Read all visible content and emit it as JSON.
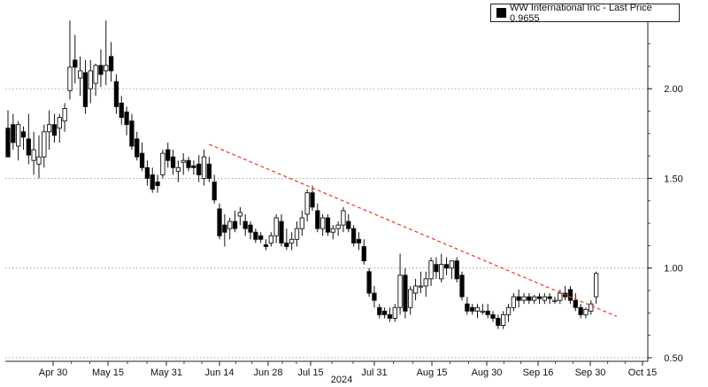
{
  "legend": {
    "label": "WW International Inc - Last Price 0.9655",
    "swatch_color": "#000000"
  },
  "chart_data": {
    "type": "candlestick",
    "title": "",
    "xlabel": "2024",
    "ylabel": "",
    "ylim": [
      0.48,
      2.48
    ],
    "yticks": [
      0.5,
      1.0,
      1.5,
      2.0
    ],
    "ytick_labels": [
      "0.50",
      "1.00",
      "1.50",
      "2.00"
    ],
    "xtick_labels": [
      "Apr 30",
      "May 15",
      "May 31",
      "Jun 14",
      "Jun 28",
      "Jul 15",
      "Jul 31",
      "Aug 15",
      "Aug 30",
      "Sep 16",
      "Sep 30",
      "Oct 15"
    ],
    "grid": true,
    "legend_position": "top-right",
    "up_color": "#ffffff",
    "down_color": "#000000",
    "series": [
      {
        "name": "WW International Inc - Last Price 0.9655",
        "ohlc": [
          [
            1.78,
            1.88,
            1.62,
            1.62
          ],
          [
            1.8,
            1.86,
            1.66,
            1.7
          ],
          [
            1.68,
            1.82,
            1.6,
            1.8
          ],
          [
            1.76,
            1.79,
            1.66,
            1.73
          ],
          [
            1.72,
            1.86,
            1.58,
            1.63
          ],
          [
            1.6,
            1.76,
            1.52,
            1.66
          ],
          [
            1.58,
            1.74,
            1.5,
            1.62
          ],
          [
            1.62,
            1.8,
            1.56,
            1.76
          ],
          [
            1.76,
            1.88,
            1.66,
            1.8
          ],
          [
            1.8,
            1.86,
            1.7,
            1.74
          ],
          [
            1.78,
            1.86,
            1.7,
            1.84
          ],
          [
            1.82,
            1.92,
            1.76,
            1.89
          ],
          [
            1.99,
            2.38,
            1.94,
            2.12
          ],
          [
            2.16,
            2.3,
            2.03,
            2.12
          ],
          [
            2.06,
            2.18,
            1.96,
            2.1
          ],
          [
            2.09,
            2.16,
            1.86,
            1.9
          ],
          [
            2.0,
            2.16,
            1.92,
            2.1
          ],
          [
            2.03,
            2.14,
            1.96,
            2.13
          ],
          [
            2.13,
            2.22,
            2.01,
            2.08
          ],
          [
            2.1,
            2.38,
            2.02,
            2.13
          ],
          [
            2.18,
            2.26,
            2.04,
            2.1
          ],
          [
            2.04,
            2.08,
            1.86,
            1.9
          ],
          [
            1.92,
            1.96,
            1.8,
            1.84
          ],
          [
            1.87,
            1.9,
            1.74,
            1.8
          ],
          [
            1.82,
            1.86,
            1.66,
            1.68
          ],
          [
            1.72,
            1.76,
            1.6,
            1.62
          ],
          [
            1.64,
            1.7,
            1.54,
            1.56
          ],
          [
            1.56,
            1.6,
            1.46,
            1.5
          ],
          [
            1.52,
            1.56,
            1.42,
            1.44
          ],
          [
            1.48,
            1.52,
            1.42,
            1.46
          ],
          [
            1.52,
            1.66,
            1.5,
            1.64
          ],
          [
            1.66,
            1.7,
            1.56,
            1.6
          ],
          [
            1.62,
            1.66,
            1.52,
            1.56
          ],
          [
            1.54,
            1.6,
            1.48,
            1.56
          ],
          [
            1.59,
            1.64,
            1.52,
            1.6
          ],
          [
            1.6,
            1.62,
            1.54,
            1.56
          ],
          [
            1.57,
            1.6,
            1.52,
            1.56
          ],
          [
            1.58,
            1.63,
            1.48,
            1.52
          ],
          [
            1.5,
            1.66,
            1.46,
            1.62
          ],
          [
            1.58,
            1.62,
            1.48,
            1.5
          ],
          [
            1.48,
            1.52,
            1.36,
            1.38
          ],
          [
            1.33,
            1.36,
            1.16,
            1.18
          ],
          [
            1.24,
            1.3,
            1.12,
            1.2
          ],
          [
            1.22,
            1.28,
            1.16,
            1.26
          ],
          [
            1.26,
            1.32,
            1.2,
            1.22
          ],
          [
            1.29,
            1.34,
            1.24,
            1.31
          ],
          [
            1.26,
            1.3,
            1.18,
            1.22
          ],
          [
            1.24,
            1.26,
            1.16,
            1.2
          ],
          [
            1.2,
            1.22,
            1.14,
            1.16
          ],
          [
            1.18,
            1.2,
            1.14,
            1.16
          ],
          [
            1.13,
            1.16,
            1.1,
            1.12
          ],
          [
            1.14,
            1.2,
            1.12,
            1.18
          ],
          [
            1.18,
            1.3,
            1.14,
            1.28
          ],
          [
            1.26,
            1.3,
            1.12,
            1.14
          ],
          [
            1.14,
            1.22,
            1.1,
            1.12
          ],
          [
            1.14,
            1.2,
            1.1,
            1.16
          ],
          [
            1.16,
            1.26,
            1.12,
            1.22
          ],
          [
            1.22,
            1.32,
            1.18,
            1.28
          ],
          [
            1.3,
            1.44,
            1.26,
            1.42
          ],
          [
            1.42,
            1.46,
            1.32,
            1.34
          ],
          [
            1.32,
            1.36,
            1.2,
            1.22
          ],
          [
            1.22,
            1.3,
            1.18,
            1.28
          ],
          [
            1.28,
            1.3,
            1.18,
            1.2
          ],
          [
            1.2,
            1.24,
            1.16,
            1.22
          ],
          [
            1.22,
            1.26,
            1.18,
            1.24
          ],
          [
            1.24,
            1.34,
            1.2,
            1.32
          ],
          [
            1.26,
            1.3,
            1.2,
            1.22
          ],
          [
            1.22,
            1.24,
            1.12,
            1.14
          ],
          [
            1.16,
            1.2,
            1.1,
            1.14
          ],
          [
            1.12,
            1.16,
            1.02,
            1.04
          ],
          [
            0.98,
            1.0,
            0.84,
            0.86
          ],
          [
            0.86,
            0.9,
            0.78,
            0.82
          ],
          [
            0.78,
            0.8,
            0.72,
            0.74
          ],
          [
            0.76,
            0.78,
            0.72,
            0.74
          ],
          [
            0.74,
            0.78,
            0.7,
            0.72
          ],
          [
            0.72,
            0.8,
            0.7,
            0.78
          ],
          [
            0.78,
            1.08,
            0.74,
            0.96
          ],
          [
            0.96,
            1.0,
            0.72,
            0.76
          ],
          [
            0.78,
            0.9,
            0.74,
            0.88
          ],
          [
            0.86,
            0.94,
            0.82,
            0.9
          ],
          [
            0.9,
            0.98,
            0.86,
            0.9
          ],
          [
            0.9,
            0.98,
            0.84,
            0.94
          ],
          [
            0.94,
            1.06,
            0.9,
            1.04
          ],
          [
            1.02,
            1.06,
            0.94,
            0.98
          ],
          [
            0.94,
            1.08,
            0.92,
            1.02
          ],
          [
            1.02,
            1.06,
            0.96,
            1.0
          ],
          [
            1.0,
            1.04,
            0.94,
            1.04
          ],
          [
            1.04,
            1.06,
            0.92,
            0.94
          ],
          [
            0.96,
            0.98,
            0.82,
            0.84
          ],
          [
            0.8,
            0.84,
            0.74,
            0.76
          ],
          [
            0.78,
            0.8,
            0.74,
            0.76
          ],
          [
            0.76,
            0.8,
            0.72,
            0.78
          ],
          [
            0.76,
            0.8,
            0.74,
            0.76
          ],
          [
            0.76,
            0.8,
            0.72,
            0.74
          ],
          [
            0.74,
            0.76,
            0.7,
            0.72
          ],
          [
            0.72,
            0.74,
            0.66,
            0.68
          ],
          [
            0.68,
            0.76,
            0.66,
            0.74
          ],
          [
            0.74,
            0.8,
            0.7,
            0.78
          ],
          [
            0.78,
            0.86,
            0.76,
            0.84
          ],
          [
            0.84,
            0.88,
            0.78,
            0.82
          ],
          [
            0.82,
            0.86,
            0.8,
            0.84
          ],
          [
            0.84,
            0.86,
            0.8,
            0.82
          ],
          [
            0.82,
            0.85,
            0.8,
            0.84
          ],
          [
            0.84,
            0.86,
            0.8,
            0.83
          ],
          [
            0.82,
            0.86,
            0.8,
            0.84
          ],
          [
            0.84,
            0.86,
            0.8,
            0.83
          ],
          [
            0.82,
            0.84,
            0.8,
            0.82
          ],
          [
            0.82,
            0.88,
            0.8,
            0.86
          ],
          [
            0.86,
            0.9,
            0.82,
            0.84
          ],
          [
            0.88,
            0.9,
            0.8,
            0.82
          ],
          [
            0.82,
            0.86,
            0.76,
            0.78
          ],
          [
            0.78,
            0.8,
            0.72,
            0.74
          ],
          [
            0.74,
            0.78,
            0.72,
            0.77
          ],
          [
            0.76,
            0.82,
            0.74,
            0.8
          ],
          [
            0.84,
            0.98,
            0.8,
            0.97
          ]
        ]
      }
    ],
    "trendline": {
      "color": "#e8392b",
      "style": "dashed",
      "start": {
        "index": 39,
        "value": 1.69
      },
      "end": {
        "index": 118,
        "value": 0.73
      }
    }
  }
}
